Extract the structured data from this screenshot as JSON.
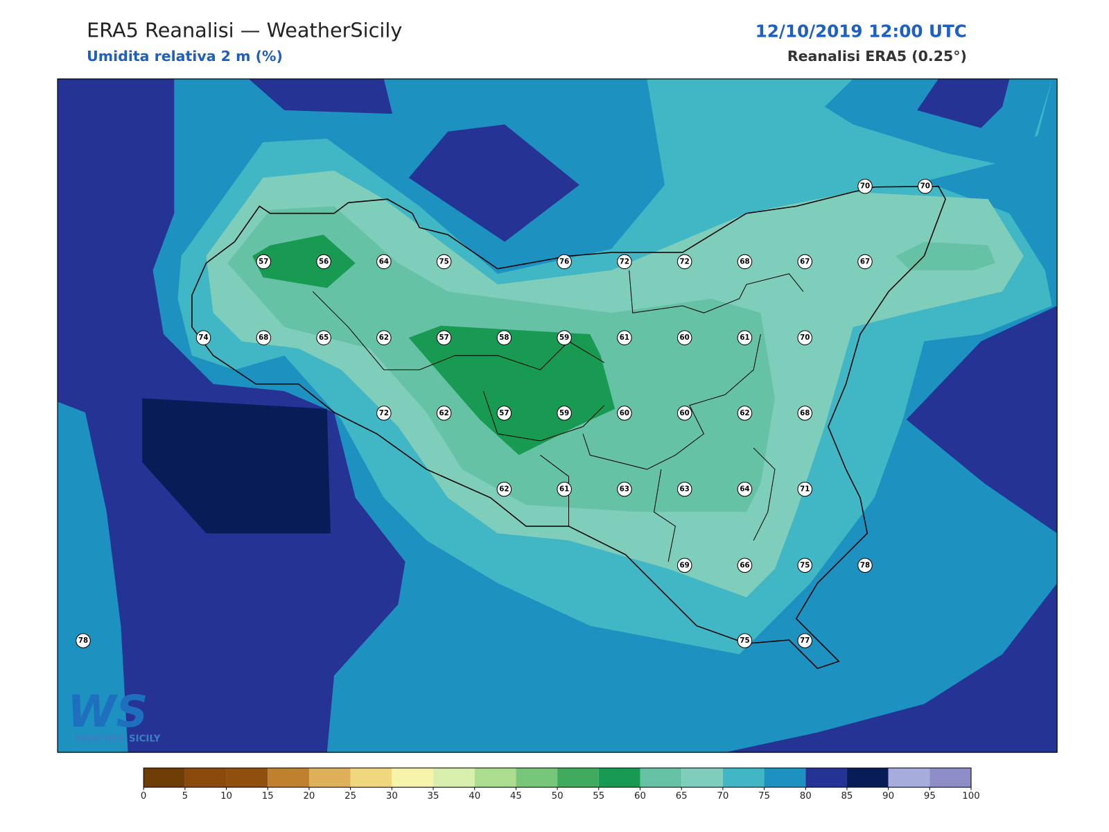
{
  "header": {
    "title": "ERA5 Reanalisi — WeatherSicily",
    "subtitle": "Umidita relativa 2 m (%)",
    "datetime": "12/10/2019 12:00 UTC",
    "source": "Reanalisi ERA5 (0.25°)"
  },
  "map": {
    "stations": [
      [
        70,
        70
      ],
      [
        57,
        56,
        64,
        75,
        76,
        72,
        72,
        68,
        67,
        67
      ],
      [
        74,
        68,
        65,
        62,
        57,
        58,
        59,
        61,
        60,
        61,
        70
      ],
      [
        72,
        62,
        57,
        59,
        60,
        60,
        62,
        68
      ],
      [
        62,
        61,
        63,
        63,
        64,
        71
      ],
      [
        69,
        66,
        75,
        78
      ],
      [
        78,
        75,
        77
      ]
    ]
  },
  "colorbar": {
    "ticks": [
      0,
      5,
      10,
      15,
      20,
      25,
      30,
      35,
      40,
      45,
      50,
      55,
      60,
      65,
      70,
      75,
      80,
      85,
      90,
      95,
      100
    ],
    "colors": [
      "#6f3d06",
      "#8a4a0c",
      "#8f500f",
      "#bf812d",
      "#dfb05a",
      "#f0d77f",
      "#f6f3aa",
      "#d9efad",
      "#addd8e",
      "#78c679",
      "#41ab5d",
      "#189a52",
      "#66c2a5",
      "#7fcdbb",
      "#41b6c4",
      "#1d91c0",
      "#253494",
      "#081d58",
      "#a6acdc",
      "#8f8dc8"
    ]
  },
  "logo": {
    "mark": "WS",
    "text": "WEATHER SICILY"
  }
}
